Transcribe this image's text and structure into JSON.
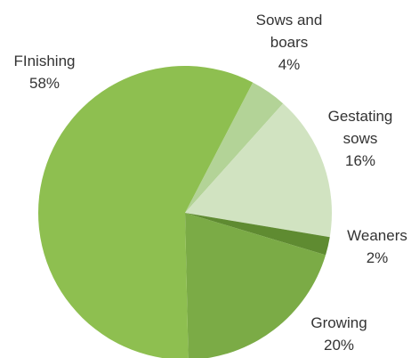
{
  "chart_data": {
    "type": "pie",
    "categories": [
      "Sows and boars",
      "Gestating sows",
      "Weaners",
      "Growing",
      "FInishing"
    ],
    "values": [
      4,
      16,
      2,
      20,
      58
    ],
    "value_labels": [
      "4%",
      "16%",
      "2%",
      "20%",
      "58%"
    ],
    "colors": [
      "#b3d397",
      "#d1e3c1",
      "#5f8b31",
      "#7bab46",
      "#8ebf50"
    ]
  }
}
